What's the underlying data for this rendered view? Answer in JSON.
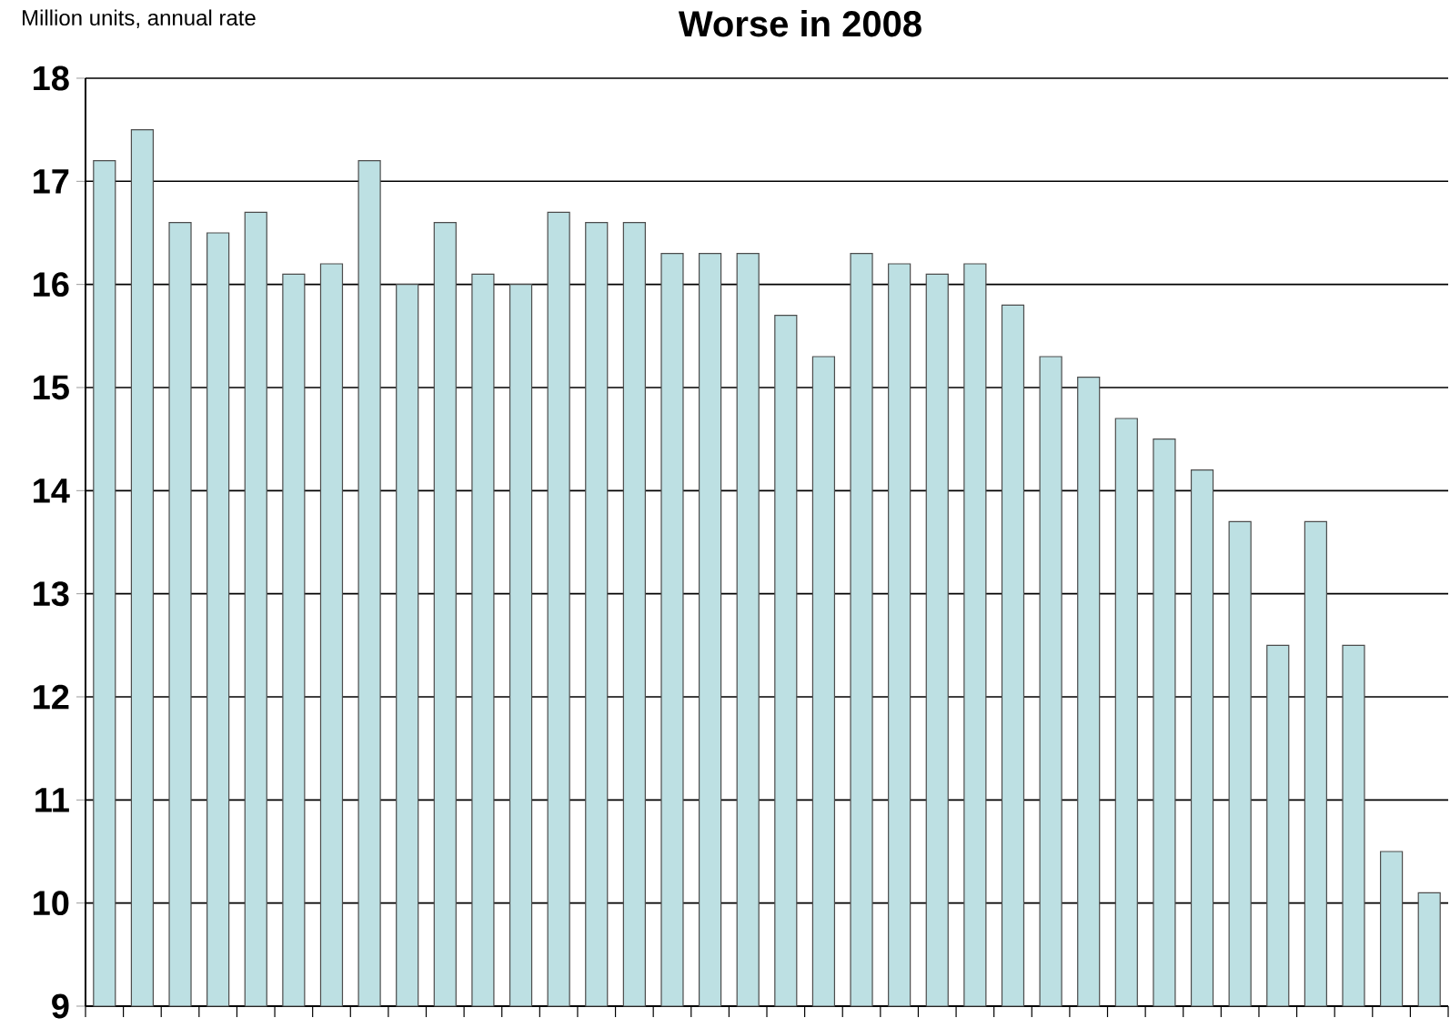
{
  "chart_data": {
    "type": "bar",
    "title": "Worse in 2008",
    "ylabel": "Million units, annual rate",
    "categories": [
      null,
      null,
      null,
      null,
      null,
      null,
      null,
      null,
      null,
      null,
      null,
      null,
      null,
      null,
      null,
      null,
      null,
      null,
      null,
      null,
      null,
      null,
      null,
      null,
      null,
      null,
      null,
      null,
      null,
      null,
      null,
      null,
      null,
      null,
      null,
      null
    ],
    "values": [
      17.2,
      17.5,
      16.6,
      16.5,
      16.7,
      16.1,
      16.2,
      17.2,
      16.0,
      16.6,
      16.1,
      16.0,
      16.7,
      16.6,
      16.6,
      16.3,
      16.3,
      16.3,
      15.7,
      15.3,
      16.3,
      16.2,
      16.1,
      16.2,
      15.8,
      15.3,
      15.1,
      14.7,
      14.5,
      14.2,
      13.7,
      12.5,
      13.7,
      12.5,
      10.5,
      10.1
    ],
    "color": "#bde0e3",
    "ylim": [
      9,
      18
    ],
    "yticks": [
      9,
      10,
      11,
      12,
      13,
      14,
      15,
      16,
      17,
      18
    ],
    "grid": "y"
  }
}
